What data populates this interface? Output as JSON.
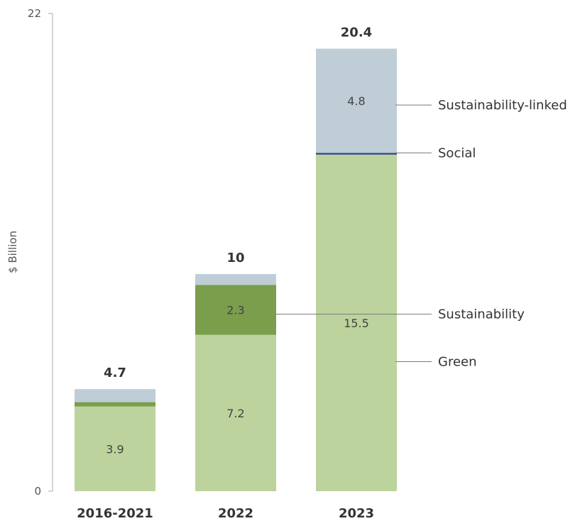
{
  "chart_data": {
    "type": "bar",
    "stacked": true,
    "categories": [
      "2016-2021",
      "2022",
      "2023"
    ],
    "ylabel": "$ Billion",
    "ylim": [
      0,
      22
    ],
    "yticks": [
      "0",
      "22"
    ],
    "grid": false,
    "totals": [
      "4.7",
      "10",
      "20.4"
    ],
    "series": [
      {
        "name": "Green",
        "color": "#bcd39d",
        "values": [
          3.9,
          7.2,
          15.5
        ],
        "labels": [
          "3.9",
          "7.2",
          "15.5"
        ]
      },
      {
        "name": "Sustainability",
        "color": "#7a9e4b",
        "values": [
          0.2,
          2.3,
          0.0
        ],
        "labels": [
          "",
          "2.3",
          ""
        ]
      },
      {
        "name": "Social",
        "color": "#2d4a8c",
        "values": [
          0.0,
          0.0,
          0.08
        ],
        "labels": [
          "",
          "",
          ""
        ]
      },
      {
        "name": "Sustainability-linked",
        "color": "#bfcdd6",
        "values": [
          0.6,
          0.5,
          4.8
        ],
        "labels": [
          "",
          "",
          "4.8"
        ]
      }
    ],
    "legend": [
      "Sustainability-linked",
      "Social",
      "Sustainability",
      "Green"
    ]
  }
}
